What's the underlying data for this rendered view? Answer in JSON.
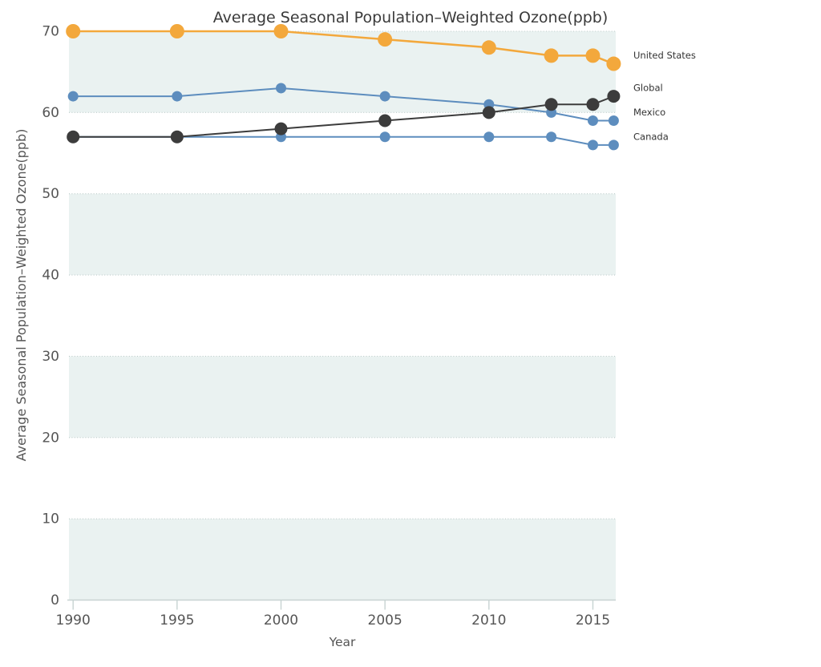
{
  "chart_data": {
    "type": "line",
    "title": "Average Seasonal Population–Weighted Ozone(ppb)",
    "xlabel": "Year",
    "ylabel": "Average Seasonal Population–Weighted Ozone(ppb)",
    "x": [
      1990,
      1995,
      2000,
      2005,
      2010,
      2013,
      2015,
      2016
    ],
    "xlim": [
      1989.8,
      2016.1
    ],
    "ylim": [
      0,
      70
    ],
    "x_ticks": [
      1990,
      1995,
      2000,
      2005,
      2010,
      2015
    ],
    "x_tick_labels": [
      "1990",
      "1995",
      "2000",
      "2005",
      "2010",
      "2015"
    ],
    "y_ticks": [
      0,
      10,
      20,
      30,
      40,
      50,
      60,
      70
    ],
    "y_tick_labels": [
      "0",
      "10",
      "20",
      "30",
      "40",
      "50",
      "60",
      "70"
    ],
    "grid": "horizontal-dotted",
    "legend_position": "right-direct-labels",
    "series": [
      {
        "name": "United States",
        "color": "#F3A83C",
        "marker_radius": 9,
        "values": [
          70,
          70,
          70,
          69,
          68,
          67,
          67,
          66
        ]
      },
      {
        "name": "Global",
        "color": "#3C3C3C",
        "marker_radius": 8,
        "values": [
          57,
          57,
          58,
          59,
          60,
          61,
          61,
          62
        ]
      },
      {
        "name": "Mexico",
        "color": "#5D8DBE",
        "marker_radius": 6.5,
        "values": [
          62,
          62,
          63,
          62,
          61,
          60,
          59,
          59
        ]
      },
      {
        "name": "Canada",
        "color": "#5D8DBE",
        "marker_radius": 6.5,
        "values": [
          57,
          57,
          57,
          57,
          57,
          57,
          56,
          56
        ]
      }
    ],
    "colors": {
      "background": "#FFFFFF",
      "band": "#EAF2F1",
      "grid_dots": "#BCCBC9",
      "axis_line": "#C7D3D2",
      "tick_text": "#555555",
      "title_text": "#3A3A3A",
      "legend_text": "#333333"
    }
  }
}
